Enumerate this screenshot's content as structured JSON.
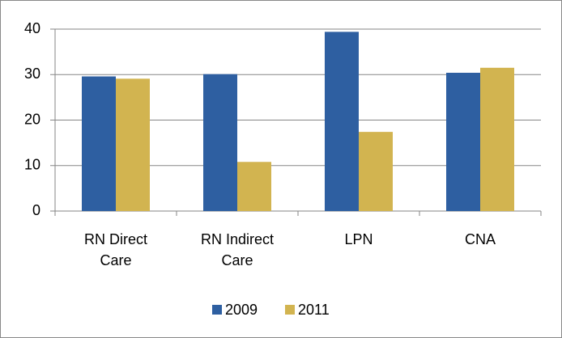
{
  "chart_data": {
    "type": "bar",
    "categories": [
      "RN Direct Care",
      "RN Indirect Care",
      "LPN",
      "CNA"
    ],
    "series": [
      {
        "name": "2009",
        "color": "#2e5fa1",
        "values": [
          29.6,
          30.1,
          39.4,
          30.4
        ]
      },
      {
        "name": "2011",
        "color": "#d2b450",
        "values": [
          29.1,
          10.8,
          17.4,
          31.5
        ]
      }
    ],
    "ylim": [
      0,
      40
    ],
    "yticks": [
      0,
      10,
      20,
      30,
      40
    ],
    "grid": true,
    "legend": "bottom"
  }
}
